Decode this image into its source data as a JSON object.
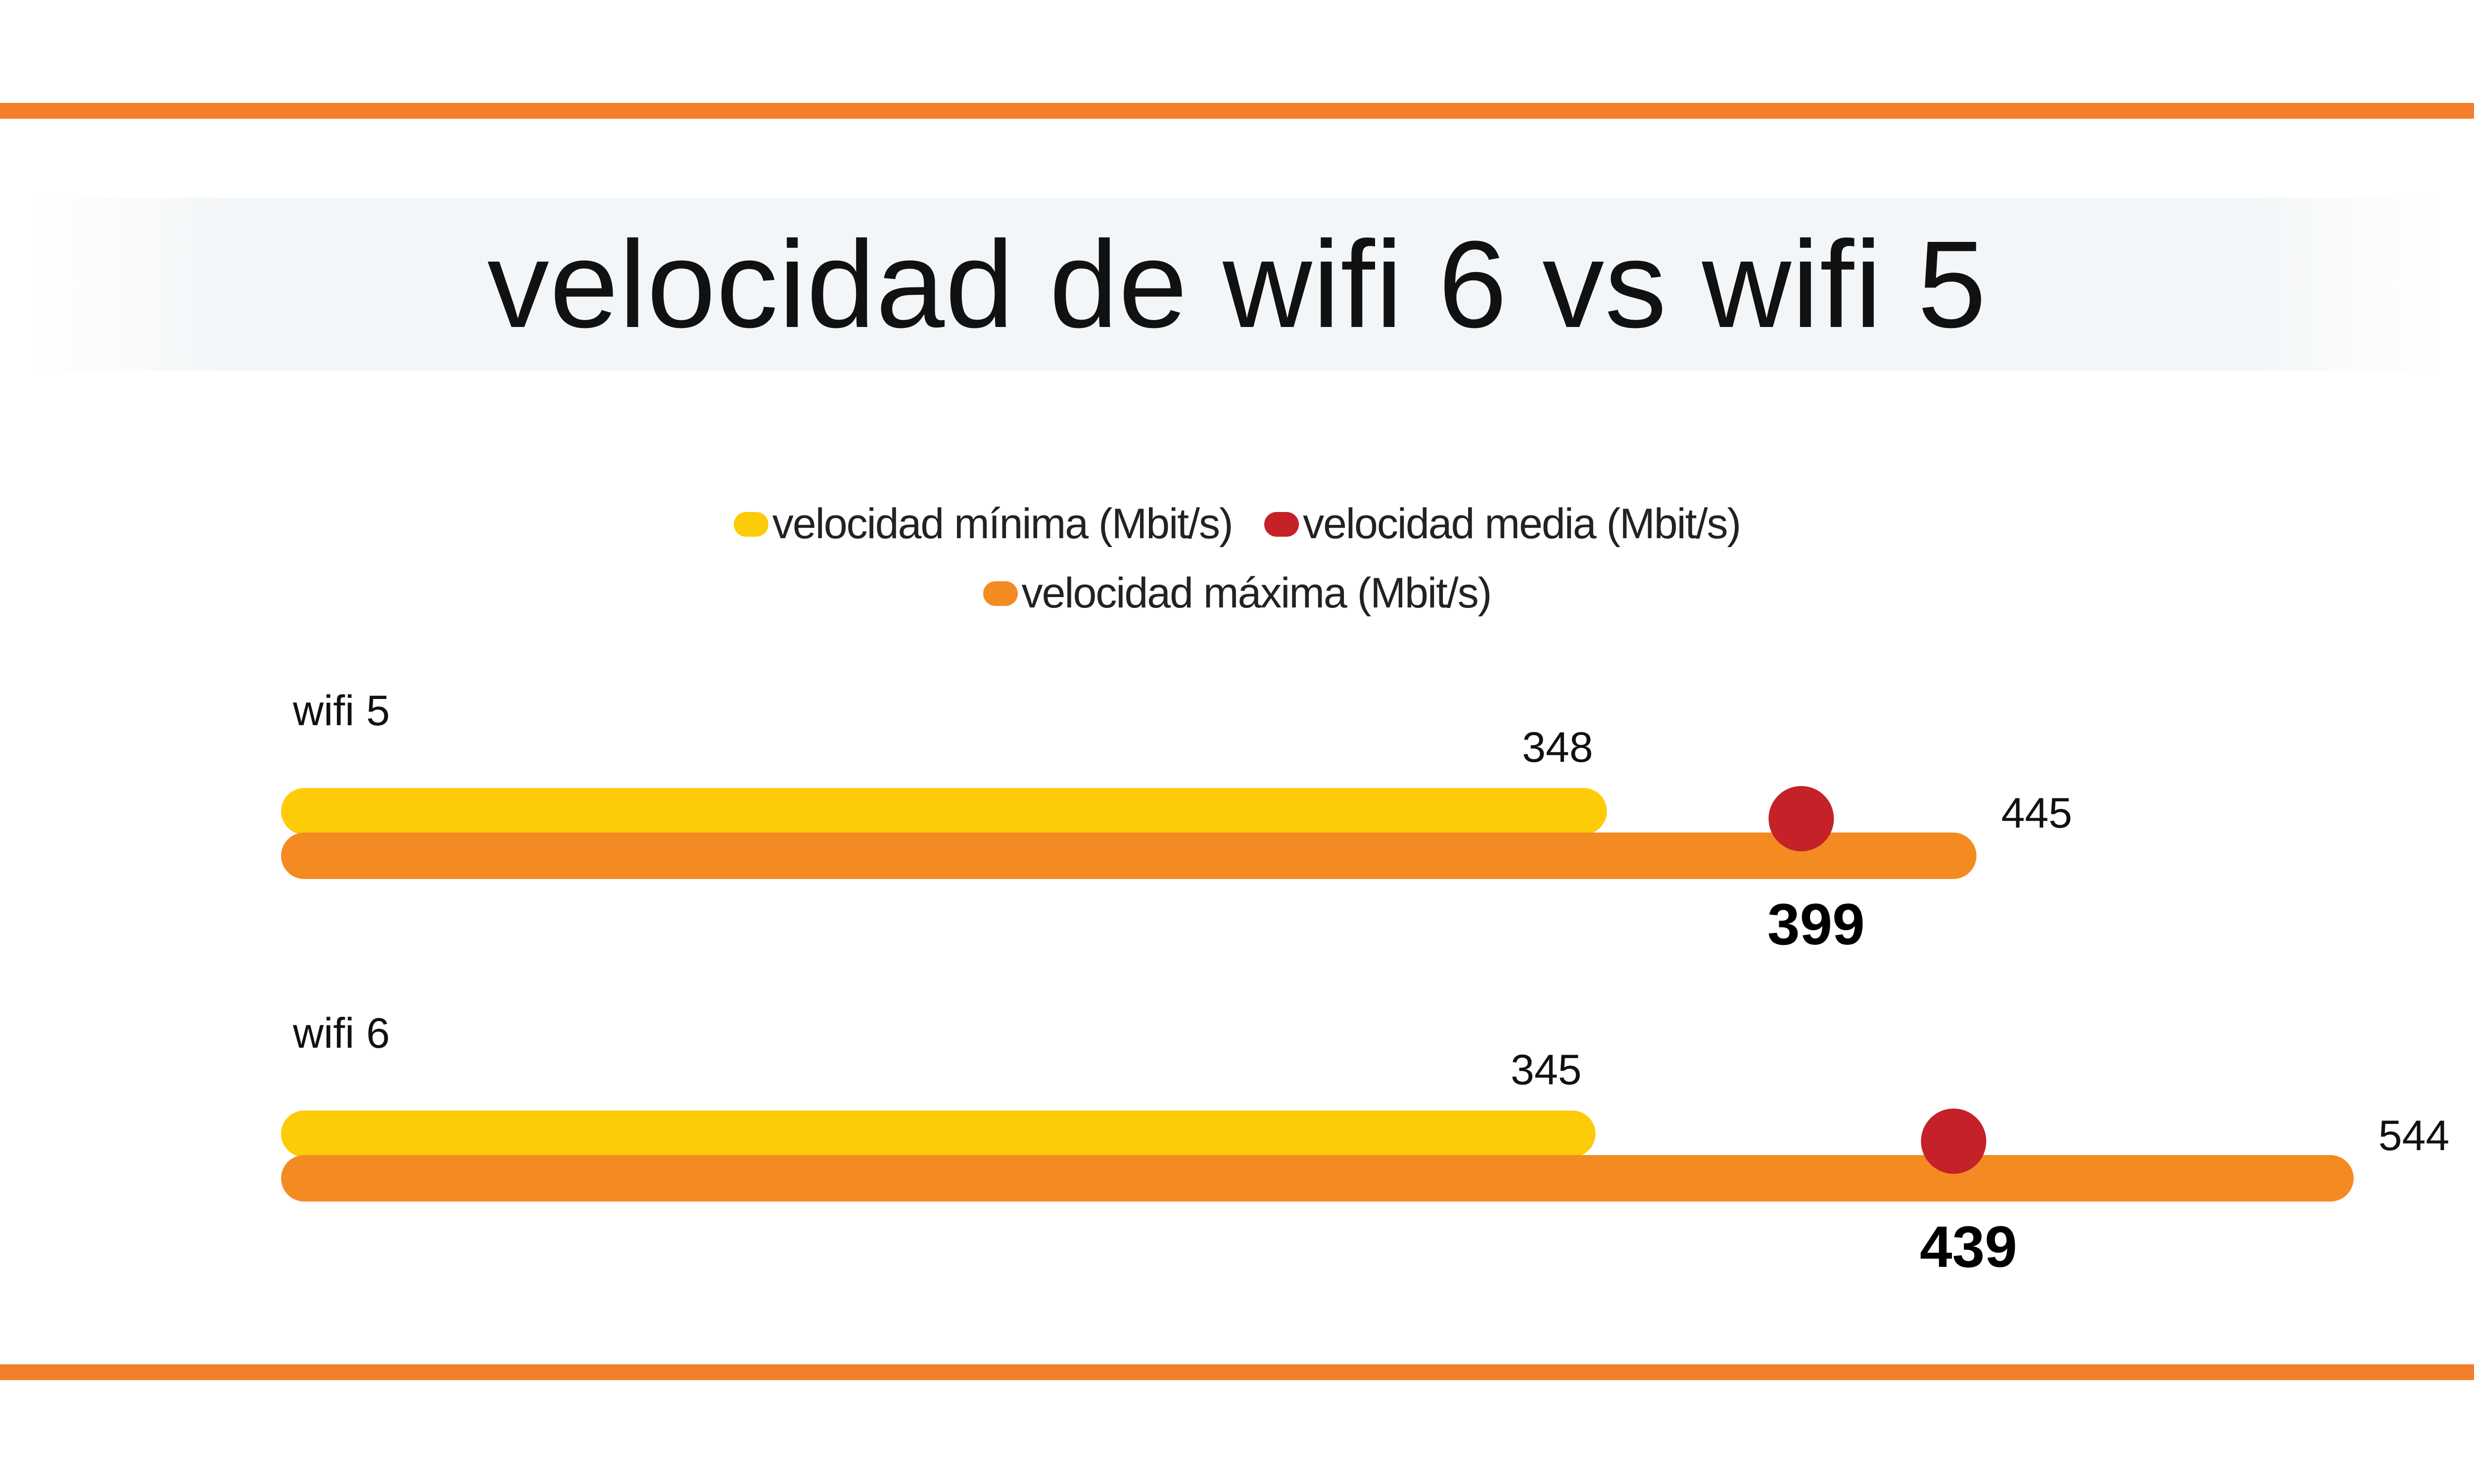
{
  "title": "velocidad de wifi 6 vs wifi 5",
  "colors": {
    "rule": "#f47f2a",
    "minimum": "#fdcb07",
    "mean": "#c42128",
    "maximum": "#f48b22"
  },
  "chart_data": {
    "type": "bar",
    "title": "velocidad de wifi 6 vs wifi 5",
    "orientation": "horizontal",
    "categories": [
      "wifi 5",
      "wifi 6"
    ],
    "series": [
      {
        "name": "velocidad mínima (Mbit/s)",
        "values": [
          348,
          345
        ],
        "color": "#fdcb07"
      },
      {
        "name": "velocidad media (Mbit/s)",
        "values": [
          399,
          439
        ],
        "color": "#c42128",
        "marker": "dot"
      },
      {
        "name": "velocidad máxima (Mbit/s)",
        "values": [
          445,
          544
        ],
        "color": "#f48b22"
      }
    ],
    "legend": "top-center",
    "grid": false,
    "xlabel": "",
    "ylabel": ""
  }
}
